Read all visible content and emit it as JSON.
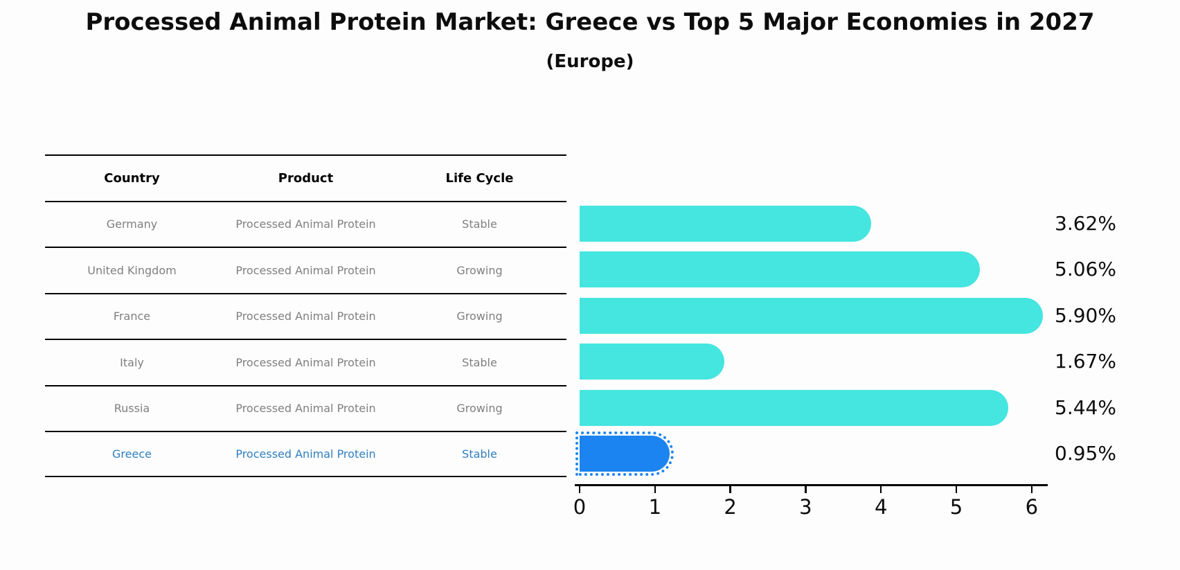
{
  "page": {
    "title": "Processed Animal Protein Market: Greece vs Top 5 Major Economies in 2027",
    "subtitle": "(Europe)"
  },
  "table": {
    "headers": [
      "Country",
      "Product",
      "Life Cycle"
    ],
    "rows": [
      {
        "country": "Germany",
        "product": "Processed Animal Protein",
        "life_cycle": "Stable",
        "highlighted": false
      },
      {
        "country": "United Kingdom",
        "product": "Processed Animal Protein",
        "life_cycle": "Growing",
        "highlighted": false
      },
      {
        "country": "France",
        "product": "Processed Animal Protein",
        "life_cycle": "Growing",
        "highlighted": false
      },
      {
        "country": "Italy",
        "product": "Processed Animal Protein",
        "life_cycle": "Stable",
        "highlighted": false
      },
      {
        "country": "Russia",
        "product": "Processed Animal Protein",
        "life_cycle": "Growing",
        "highlighted": true
      },
      {
        "country": "Greece",
        "product": "Processed Animal Protein",
        "life_cycle": "Stable",
        "highlighted": true
      }
    ]
  },
  "chart_data": {
    "type": "bar",
    "orientation": "horizontal",
    "title": "Processed Animal Protein Market: Greece vs Top 5 Major Economies in 2027",
    "subtitle": "(Europe)",
    "categories": [
      "Germany",
      "United Kingdom",
      "France",
      "Italy",
      "Russia",
      "Greece"
    ],
    "values": [
      3.62,
      5.06,
      5.9,
      1.67,
      5.44,
      0.95
    ],
    "value_labels": [
      "3.62%",
      "5.06%",
      "5.90%",
      "1.67%",
      "5.44%",
      "0.95%"
    ],
    "highlight_index": 5,
    "x_ticks": [
      "0",
      "1",
      "2",
      "3",
      "4",
      "5",
      "6"
    ],
    "xlim": [
      0,
      6.2
    ],
    "grid": false,
    "legend": false,
    "bar_color": "#45e5e0",
    "highlight_bar_color": "#1c84f0",
    "highlight_text_color": "#2e7ebf"
  }
}
